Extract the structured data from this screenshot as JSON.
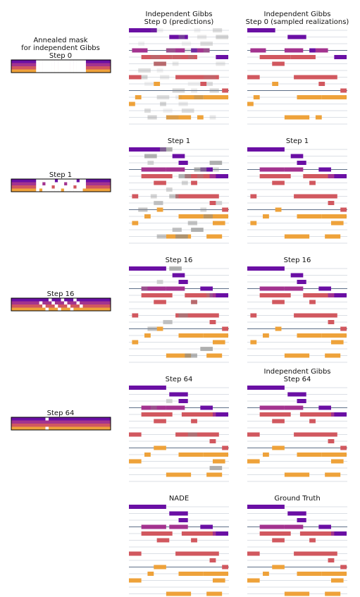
{
  "colors": {
    "violet": "#6a0fa4",
    "magenta": "#a3338f",
    "rose": "#d1585f",
    "orange": "#eea23a",
    "staff_line": "#b7c0cc",
    "dark_line": "#5e6f88",
    "grey": "#8a8a8a",
    "frame": "#000000"
  },
  "left_column": {
    "rows": [
      {
        "title": [
          "Annealed mask",
          "for independent Gibbs",
          "Step 0"
        ],
        "mask_level": 0
      },
      {
        "title": [
          "Step 1"
        ],
        "mask_level": 1
      },
      {
        "title": [
          "Step 16"
        ],
        "mask_level": 16
      },
      {
        "title": [
          "Step 64"
        ],
        "mask_level": 64
      }
    ]
  },
  "grid": [
    [
      {
        "title": [
          "Independent Gibbs",
          "Step 0 (predictions)"
        ],
        "variant": "step0-pred"
      },
      {
        "title": [
          "Independent Gibbs",
          "Step 0 (sampled realizations)"
        ],
        "variant": "step0-sample"
      }
    ],
    [
      {
        "title": [
          "Step 1"
        ],
        "variant": "step1-pred"
      },
      {
        "title": [
          "Step 1"
        ],
        "variant": "step1-sample"
      }
    ],
    [
      {
        "title": [
          "Step 16"
        ],
        "variant": "step16-pred"
      },
      {
        "title": [
          "Step 16"
        ],
        "variant": "step16-sample"
      }
    ],
    [
      {
        "title": [
          "Step 64"
        ],
        "variant": "step64-pred"
      },
      {
        "title": [
          "Independent Gibbs",
          "Step 64"
        ],
        "variant": "step64-sample"
      }
    ],
    [
      {
        "title": [
          "NADE"
        ],
        "variant": "nade"
      },
      {
        "title": [
          "Ground Truth"
        ],
        "variant": "truth"
      }
    ]
  ]
}
